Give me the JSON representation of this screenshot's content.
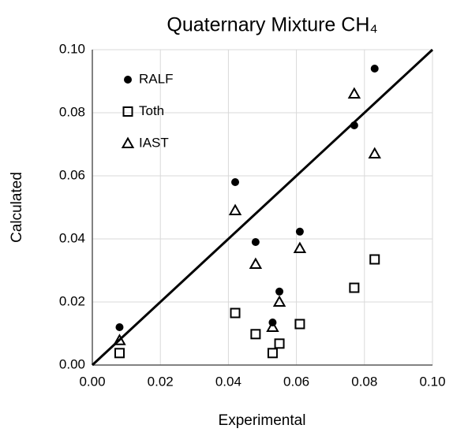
{
  "chart_data": {
    "type": "scatter",
    "title": "Quaternary Mixture CH₄",
    "x_label": "Experimental",
    "y_label": "Calculated",
    "xlim": [
      0,
      0.1
    ],
    "ylim": [
      0,
      0.1
    ],
    "xticks": [
      {
        "value": 0,
        "label": "0.00"
      },
      {
        "value": 0.02,
        "label": "0.02"
      },
      {
        "value": 0.04,
        "label": "0.04"
      },
      {
        "value": 0.06,
        "label": "0.06"
      },
      {
        "value": 0.08,
        "label": "0.08"
      },
      {
        "value": 0.1,
        "label": "0.10"
      }
    ],
    "yticks": [
      {
        "value": 0,
        "label": "0.00"
      },
      {
        "value": 0.02,
        "label": "0.02"
      },
      {
        "value": 0.04,
        "label": "0.04"
      },
      {
        "value": 0.06,
        "label": "0.06"
      },
      {
        "value": 0.08,
        "label": "0.08"
      },
      {
        "value": 0.1,
        "label": "0.10"
      }
    ],
    "grid": true,
    "legend": "upper left",
    "series": [
      {
        "name": "RALF",
        "color": "#000000",
        "marker": "circle",
        "x": [
          0.008,
          0.042,
          0.048,
          0.053,
          0.055,
          0.061,
          0.077,
          0.083
        ],
        "values": [
          0.012,
          0.058,
          0.039,
          0.0135,
          0.0233,
          0.0423,
          0.076,
          0.094
        ]
      },
      {
        "name": "Toth",
        "color": "#000000",
        "marker": "square",
        "x": [
          0.008,
          0.042,
          0.048,
          0.053,
          0.055,
          0.061,
          0.077,
          0.083
        ],
        "values": [
          0.0038,
          0.0165,
          0.0098,
          0.0038,
          0.0068,
          0.013,
          0.0245,
          0.0335
        ]
      },
      {
        "name": "IAST",
        "color": "#000000",
        "marker": "triangle",
        "x": [
          0.008,
          0.042,
          0.048,
          0.053,
          0.055,
          0.061,
          0.077,
          0.083
        ],
        "values": [
          0.0078,
          0.049,
          0.032,
          0.012,
          0.02,
          0.037,
          0.086,
          0.067
        ]
      }
    ],
    "reference_line": {
      "x": [
        0,
        0.1
      ],
      "y": [
        0,
        0.1
      ],
      "color": "#000000"
    }
  }
}
